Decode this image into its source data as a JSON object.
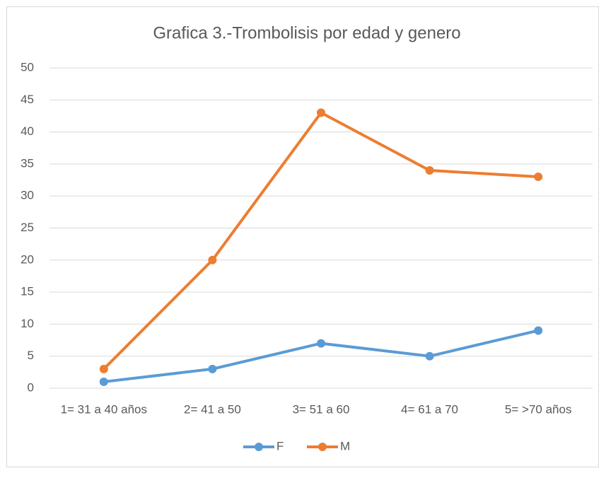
{
  "chart_data": {
    "type": "line",
    "title": "Grafica 3.-Trombolisis por edad y genero",
    "categories": [
      "1= 31 a 40 años",
      "2= 41 a 50",
      "3= 51 a 60",
      "4= 61 a 70",
      "5= >70 años"
    ],
    "series": [
      {
        "name": "F",
        "color": "#5b9bd5",
        "values": [
          1,
          3,
          7,
          5,
          9
        ]
      },
      {
        "name": "M",
        "color": "#ed7d31",
        "values": [
          3,
          20,
          43,
          34,
          33
        ]
      }
    ],
    "ylim": [
      0,
      50
    ],
    "yticks": [
      0,
      5,
      10,
      15,
      20,
      25,
      30,
      35,
      40,
      45,
      50
    ],
    "grid": true,
    "legend": "bottom"
  }
}
